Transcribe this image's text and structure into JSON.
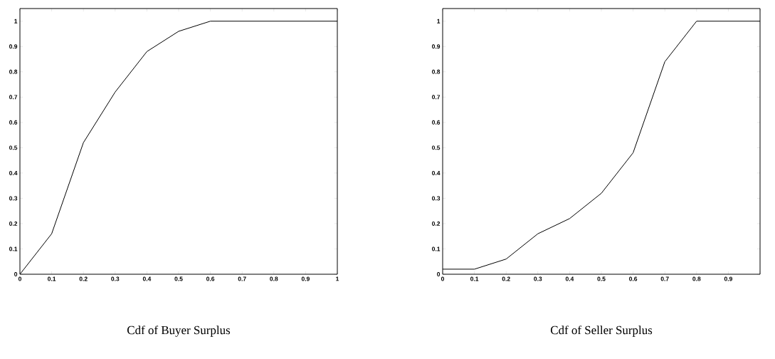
{
  "chart_data": [
    {
      "type": "line",
      "title": "Cdf of Buyer Surplus",
      "x": [
        0,
        0.1,
        0.2,
        0.3,
        0.4,
        0.5,
        0.6,
        0.7,
        0.8,
        0.9,
        1
      ],
      "series": [
        {
          "color": "#000000",
          "values": [
            0,
            0.16,
            0.52,
            0.72,
            0.88,
            0.96,
            1,
            1,
            1,
            1,
            1
          ]
        }
      ],
      "xlim": [
        0,
        1
      ],
      "ylim": [
        0,
        1.05
      ],
      "xticks": [
        0,
        0.1,
        0.2,
        0.3,
        0.4,
        0.5,
        0.6,
        0.7,
        0.8,
        0.9,
        1
      ],
      "yticks": [
        0,
        0.1,
        0.2,
        0.3,
        0.4,
        0.5,
        0.6,
        0.7,
        0.8,
        0.9,
        1
      ],
      "grid": false,
      "legend": false,
      "marker": "none",
      "line_style": "solid"
    },
    {
      "type": "line",
      "title": "Cdf of Seller Surplus",
      "x": [
        0,
        0.1,
        0.2,
        0.3,
        0.4,
        0.5,
        0.6,
        0.7,
        0.8,
        0.9,
        1
      ],
      "series": [
        {
          "color": "#000000",
          "values": [
            0.02,
            0.02,
            0.06,
            0.16,
            0.22,
            0.32,
            0.48,
            0.84,
            1,
            1,
            1
          ]
        }
      ],
      "xlim": [
        0,
        1
      ],
      "ylim": [
        0,
        1.05
      ],
      "xticks": [
        0,
        0.1,
        0.2,
        0.3,
        0.4,
        0.5,
        0.6,
        0.7,
        0.8,
        0.9,
        {
          "value": 1,
          "label": null
        }
      ],
      "yticks": [
        0,
        0.1,
        0.2,
        0.3,
        0.4,
        0.5,
        0.6,
        0.7,
        0.8,
        0.9,
        1
      ],
      "grid": false,
      "legend": false,
      "marker": "none",
      "line_style": "solid"
    }
  ]
}
